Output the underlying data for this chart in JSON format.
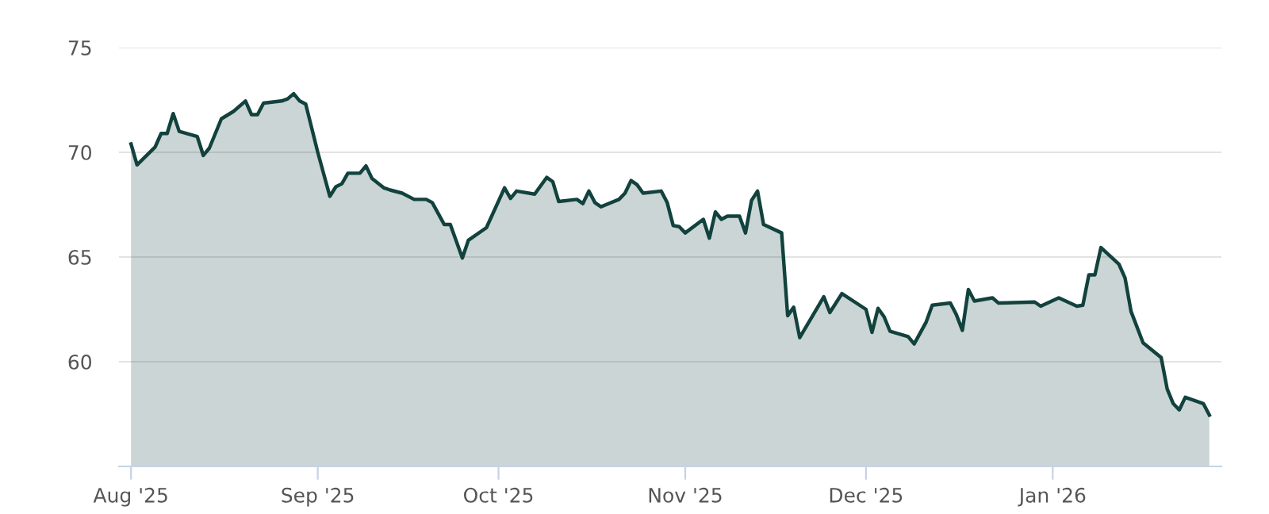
{
  "chart_data": {
    "type": "area",
    "x": [
      "2025-08-01",
      "2025-08-02",
      "2025-08-05",
      "2025-08-06",
      "2025-08-07",
      "2025-08-08",
      "2025-08-09",
      "2025-08-12",
      "2025-08-13",
      "2025-08-14",
      "2025-08-16",
      "2025-08-18",
      "2025-08-20",
      "2025-08-21",
      "2025-08-22",
      "2025-08-23",
      "2025-08-26",
      "2025-08-27",
      "2025-08-28",
      "2025-08-29",
      "2025-08-30",
      "2025-09-01",
      "2025-09-03",
      "2025-09-04",
      "2025-09-05",
      "2025-09-06",
      "2025-09-08",
      "2025-09-09",
      "2025-09-10",
      "2025-09-12",
      "2025-09-13",
      "2025-09-15",
      "2025-09-17",
      "2025-09-19",
      "2025-09-20",
      "2025-09-22",
      "2025-09-23",
      "2025-09-25",
      "2025-09-26",
      "2025-09-29",
      "2025-10-02",
      "2025-10-03",
      "2025-10-04",
      "2025-10-07",
      "2025-10-09",
      "2025-10-10",
      "2025-10-11",
      "2025-10-14",
      "2025-10-15",
      "2025-10-16",
      "2025-10-17",
      "2025-10-18",
      "2025-10-21",
      "2025-10-22",
      "2025-10-23",
      "2025-10-24",
      "2025-10-25",
      "2025-10-28",
      "2025-10-29",
      "2025-10-30",
      "2025-10-31",
      "2025-11-01",
      "2025-11-04",
      "2025-11-05",
      "2025-11-06",
      "2025-11-07",
      "2025-11-08",
      "2025-11-10",
      "2025-11-11",
      "2025-11-12",
      "2025-11-13",
      "2025-11-14",
      "2025-11-17",
      "2025-11-18",
      "2025-11-19",
      "2025-11-20",
      "2025-11-24",
      "2025-11-25",
      "2025-11-27",
      "2025-12-01",
      "2025-12-02",
      "2025-12-03",
      "2025-12-04",
      "2025-12-05",
      "2025-12-08",
      "2025-12-09",
      "2025-12-11",
      "2025-12-12",
      "2025-12-15",
      "2025-12-16",
      "2025-12-17",
      "2025-12-18",
      "2025-12-19",
      "2025-12-22",
      "2025-12-23",
      "2025-12-29",
      "2025-12-30",
      "2026-01-02",
      "2026-01-05",
      "2026-01-06",
      "2026-01-07",
      "2026-01-08",
      "2026-01-09",
      "2026-01-12",
      "2026-01-13",
      "2026-01-14",
      "2026-01-16",
      "2026-01-19",
      "2026-01-20",
      "2026-01-21",
      "2026-01-22",
      "2026-01-23",
      "2026-01-26",
      "2026-01-27"
    ],
    "series": [
      {
        "color": "#12423e",
        "values": [
          70.4,
          69.4,
          70.25,
          70.9,
          70.9,
          71.85,
          71.0,
          70.75,
          69.85,
          70.2,
          71.6,
          71.95,
          72.45,
          71.8,
          71.8,
          72.35,
          72.45,
          72.55,
          72.8,
          72.45,
          72.3,
          70.0,
          67.9,
          68.35,
          68.5,
          69.0,
          69.0,
          69.35,
          68.75,
          68.3,
          68.2,
          68.05,
          67.75,
          67.75,
          67.6,
          66.55,
          66.55,
          64.95,
          65.8,
          66.4,
          68.3,
          67.8,
          68.15,
          68.0,
          68.8,
          68.6,
          67.65,
          67.75,
          67.55,
          68.15,
          67.6,
          67.4,
          67.75,
          68.05,
          68.65,
          68.45,
          68.05,
          68.15,
          67.6,
          66.5,
          66.45,
          66.15,
          66.8,
          65.9,
          67.15,
          66.8,
          66.95,
          66.95,
          66.15,
          67.7,
          68.15,
          66.55,
          66.15,
          62.2,
          62.6,
          61.15,
          63.1,
          62.35,
          63.25,
          62.5,
          61.4,
          62.55,
          62.15,
          61.45,
          61.2,
          60.85,
          61.9,
          62.7,
          62.8,
          62.25,
          61.5,
          63.45,
          62.9,
          63.05,
          62.8,
          62.85,
          62.65,
          63.05,
          62.65,
          62.7,
          64.15,
          64.15,
          65.45,
          64.65,
          64.0,
          62.4,
          60.9,
          60.2,
          58.7,
          58.0,
          57.7,
          58.3,
          58.0,
          57.45
        ]
      }
    ],
    "xlim": [
      "2025-07-30",
      "2026-01-29"
    ],
    "xticks": [
      {
        "value": "2025-08-01",
        "label": "Aug '25"
      },
      {
        "value": "2025-09-01",
        "label": "Sep '25"
      },
      {
        "value": "2025-10-01",
        "label": "Oct '25"
      },
      {
        "value": "2025-11-01",
        "label": "Nov '25"
      },
      {
        "value": "2025-12-01",
        "label": "Dec '25"
      },
      {
        "value": "2026-01-01",
        "label": "Jan '26"
      }
    ],
    "ylim": [
      55,
      75
    ],
    "yticks": [
      60,
      65,
      70,
      75
    ],
    "grid": "y"
  }
}
